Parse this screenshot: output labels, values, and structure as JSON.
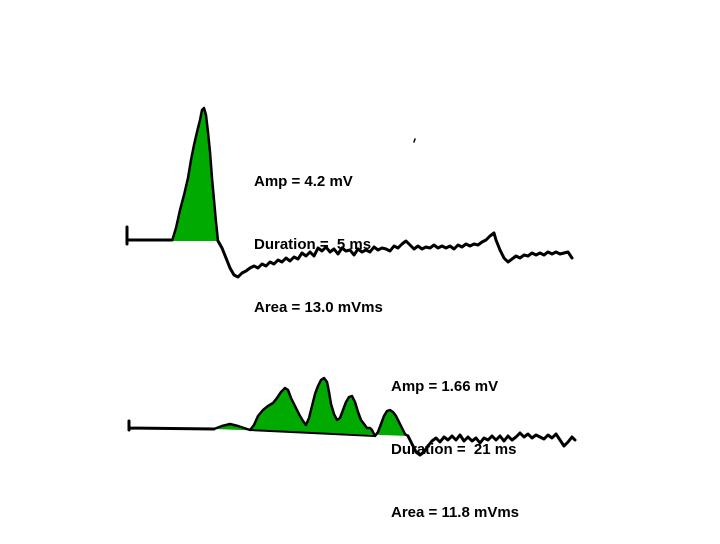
{
  "top_waveform": {
    "amp": "Amp = 4.2 mV",
    "duration": "Duration =  5 ms",
    "area": "Area = 13.0 mVms"
  },
  "bottom_waveform": {
    "amp": "Amp = 1.66 mV",
    "duration": "Duration =  21 ms",
    "area": "Area = 11.8 mVms"
  },
  "colors": {
    "area_fill": "#00aa00",
    "trace": "#000000",
    "background": "#ffffff"
  }
}
